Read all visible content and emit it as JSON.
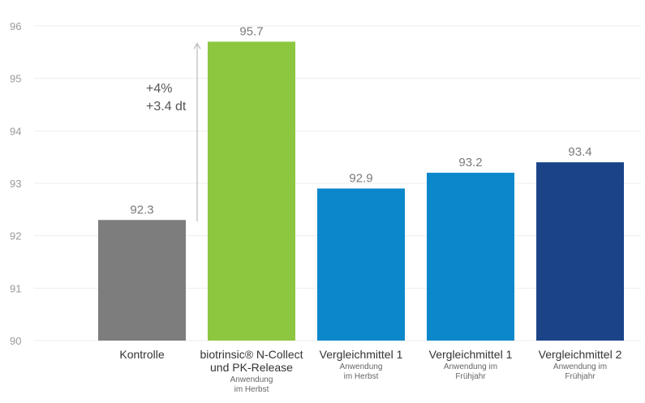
{
  "chart_data": {
    "type": "bar",
    "categories": [
      {
        "label_lines": [
          "Kontrolle"
        ],
        "sub_lines": []
      },
      {
        "label_lines": [
          "biotrinsic® N-Collect",
          "und PK-Release"
        ],
        "sub_lines": [
          "Anwendung",
          "im Herbst"
        ]
      },
      {
        "label_lines": [
          "Vergleichmittel 1"
        ],
        "sub_lines": [
          "Anwendung",
          "im Herbst"
        ]
      },
      {
        "label_lines": [
          "Vergleichmittel 1"
        ],
        "sub_lines": [
          "Anwendung im",
          "Frühjahr"
        ]
      },
      {
        "label_lines": [
          "Vergleichmittel 2"
        ],
        "sub_lines": [
          "Anwendung im",
          "Frühjahr"
        ]
      }
    ],
    "values": [
      92.3,
      95.7,
      92.9,
      93.2,
      93.4
    ],
    "value_labels": [
      "92.3",
      "95.7",
      "92.9",
      "93.2",
      "93.4"
    ],
    "colors": [
      "#7d7d7d",
      "#8dc63f",
      "#0b87cc",
      "#0b87cc",
      "#1b4488"
    ],
    "ylim": [
      90,
      96
    ],
    "yticks": [
      "90",
      "91",
      "92",
      "93",
      "94",
      "95",
      "96"
    ],
    "grid": true,
    "annotation": {
      "lines": [
        "+4%",
        "+3.4 dt"
      ],
      "from_value": 92.3,
      "to_value": 95.7
    },
    "arrow_color": "#bbbbbb"
  }
}
